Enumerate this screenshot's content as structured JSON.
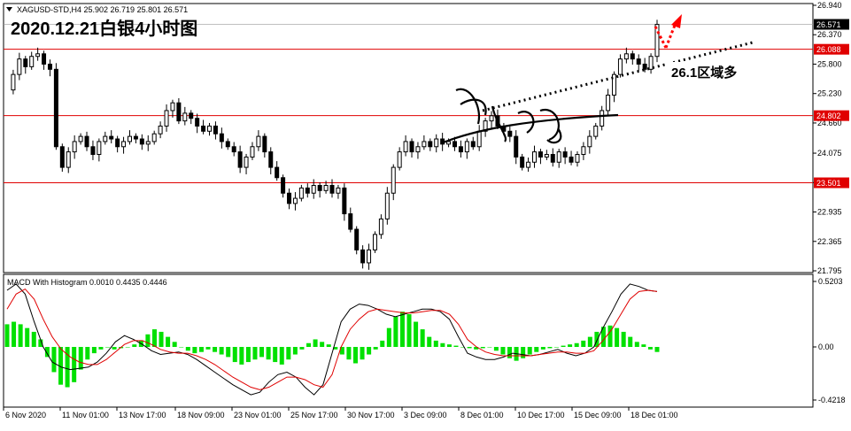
{
  "header": {
    "symbol_line": "XAGUSD-STD,H4  25.902 26.719 25.801 26.571",
    "chart_title": "2020.12.21白银4小时图"
  },
  "macd": {
    "label": "MACD With Histogram 0.0010 0.4435 0.4446",
    "y_ticks": [
      "0.5203",
      "0.00",
      "-0.4218"
    ]
  },
  "annotations": {
    "zone_label": "26.1区域多"
  },
  "colors": {
    "up_candle": "#000000",
    "down_candle": "#000000",
    "level_line": "#e00000",
    "current_price_bg": "#000000",
    "histogram": "#00e000",
    "macd_line": "#000000",
    "signal_line": "#e00000",
    "arrow": "#ff0000",
    "annotation_bg": "#ffffff"
  },
  "chart_data": [
    {
      "type": "candlestick",
      "title": "2020.12.21白银4小时图",
      "symbol": "XAGUSD-STD,H4",
      "ohlc_last": {
        "open": 25.902,
        "high": 26.719,
        "low": 25.801,
        "close": 26.571
      },
      "y_ticks": [
        "26.940",
        "26.370",
        "25.800",
        "25.230",
        "24.660",
        "24.075",
        "23.505",
        "22.935",
        "22.365",
        "21.795"
      ],
      "ylim": [
        21.795,
        26.94
      ],
      "current_price": "26.571",
      "levels": [
        {
          "label": "26.088",
          "value": 26.088
        },
        {
          "label": "24.802",
          "value": 24.802
        },
        {
          "label": "23.501",
          "value": 23.501
        }
      ],
      "x_ticks": [
        "6 Nov 2020",
        "11 Nov 01:00",
        "13 Nov 17:00",
        "18 Nov 09:00",
        "23 Nov 01:00",
        "25 Nov 17:00",
        "30 Nov 17:00",
        "3 Dec 09:00",
        "8 Dec 01:00",
        "10 Dec 17:00",
        "15 Dec 09:00",
        "18 Dec 01:00"
      ],
      "price_path": [
        25.3,
        25.6,
        25.9,
        25.75,
        25.95,
        26.0,
        25.8,
        25.7,
        24.2,
        23.8,
        24.1,
        24.3,
        24.4,
        24.2,
        24.05,
        24.3,
        24.4,
        24.35,
        24.2,
        24.3,
        24.4,
        24.35,
        24.25,
        24.3,
        24.45,
        24.6,
        24.9,
        25.05,
        24.7,
        24.85,
        24.75,
        24.6,
        24.5,
        24.6,
        24.45,
        24.3,
        24.2,
        24.1,
        23.8,
        24.0,
        24.2,
        24.4,
        24.1,
        23.8,
        23.6,
        23.3,
        23.1,
        23.2,
        23.4,
        23.3,
        23.45,
        23.35,
        23.45,
        23.3,
        23.4,
        22.9,
        22.6,
        22.2,
        21.95,
        22.2,
        22.5,
        22.8,
        23.3,
        23.8,
        24.1,
        24.3,
        24.1,
        24.2,
        24.3,
        24.2,
        24.35,
        24.25,
        24.3,
        24.2,
        24.1,
        24.3,
        24.2,
        24.5,
        24.7,
        24.8,
        24.6,
        24.5,
        24.4,
        24.0,
        23.8,
        23.9,
        24.1,
        24.0,
        24.05,
        23.9,
        24.1,
        24.0,
        23.9,
        24.05,
        24.2,
        24.4,
        24.6,
        24.9,
        25.2,
        25.6,
        25.9,
        26.0,
        25.9,
        25.8,
        25.7,
        25.95,
        26.57
      ],
      "macd": {
        "ylim": [
          -0.4218,
          0.5203
        ],
        "histogram": [
          0.18,
          0.2,
          0.18,
          0.15,
          0.12,
          0.06,
          -0.08,
          -0.2,
          -0.3,
          -0.32,
          -0.28,
          -0.18,
          -0.1,
          -0.05,
          -0.02,
          0.0,
          -0.02,
          -0.01,
          0.0,
          0.02,
          0.05,
          0.1,
          0.14,
          0.12,
          0.08,
          0.04,
          0.0,
          -0.03,
          -0.05,
          -0.04,
          -0.02,
          -0.04,
          -0.06,
          -0.08,
          -0.12,
          -0.14,
          -0.12,
          -0.1,
          -0.08,
          -0.1,
          -0.12,
          -0.14,
          -0.1,
          -0.06,
          -0.02,
          0.03,
          0.06,
          0.04,
          0.02,
          -0.02,
          -0.06,
          -0.1,
          -0.13,
          -0.1,
          -0.06,
          -0.02,
          0.05,
          0.15,
          0.24,
          0.28,
          0.26,
          0.2,
          0.14,
          0.08,
          0.05,
          0.03,
          0.02,
          0.01,
          0.0,
          -0.01,
          -0.02,
          -0.01,
          0.0,
          -0.03,
          -0.06,
          -0.09,
          -0.11,
          -0.09,
          -0.06,
          -0.04,
          -0.02,
          -0.01,
          0.0,
          0.01,
          0.02,
          0.03,
          0.05,
          0.08,
          0.12,
          0.16,
          0.17,
          0.15,
          0.12,
          0.08,
          0.04,
          0.02,
          -0.02,
          -0.04
        ],
        "macd_line": [
          0.45,
          0.5,
          0.42,
          0.2,
          0.0,
          -0.12,
          -0.16,
          -0.18,
          -0.17,
          -0.16,
          -0.12,
          -0.05,
          0.04,
          0.09,
          0.06,
          0.02,
          -0.03,
          -0.06,
          -0.05,
          -0.04,
          -0.06,
          -0.1,
          -0.15,
          -0.2,
          -0.25,
          -0.3,
          -0.34,
          -0.38,
          -0.36,
          -0.28,
          -0.22,
          -0.2,
          -0.24,
          -0.32,
          -0.38,
          -0.3,
          -0.05,
          0.2,
          0.3,
          0.34,
          0.33,
          0.3,
          0.26,
          0.24,
          0.26,
          0.28,
          0.3,
          0.3,
          0.28,
          0.22,
          0.08,
          -0.05,
          -0.08,
          -0.1,
          -0.1,
          -0.08,
          -0.05,
          -0.06,
          -0.07,
          -0.06,
          -0.04,
          -0.02,
          -0.05,
          -0.07,
          -0.05,
          0.0,
          0.15,
          0.28,
          0.42,
          0.5,
          0.48,
          0.45,
          0.44
        ],
        "signal_line": [
          0.3,
          0.42,
          0.46,
          0.38,
          0.22,
          0.08,
          -0.02,
          -0.08,
          -0.12,
          -0.14,
          -0.14,
          -0.1,
          -0.04,
          0.02,
          0.05,
          0.05,
          0.02,
          -0.02,
          -0.04,
          -0.05,
          -0.05,
          -0.07,
          -0.1,
          -0.14,
          -0.19,
          -0.24,
          -0.28,
          -0.32,
          -0.34,
          -0.32,
          -0.28,
          -0.24,
          -0.24,
          -0.26,
          -0.3,
          -0.32,
          -0.22,
          0.0,
          0.14,
          0.22,
          0.28,
          0.3,
          0.29,
          0.28,
          0.27,
          0.27,
          0.28,
          0.29,
          0.29,
          0.26,
          0.18,
          0.06,
          0.0,
          -0.04,
          -0.06,
          -0.07,
          -0.07,
          -0.07,
          -0.07,
          -0.06,
          -0.05,
          -0.04,
          -0.04,
          -0.05,
          -0.05,
          -0.03,
          0.05,
          0.14,
          0.26,
          0.38,
          0.44,
          0.45,
          0.44
        ]
      }
    }
  ]
}
